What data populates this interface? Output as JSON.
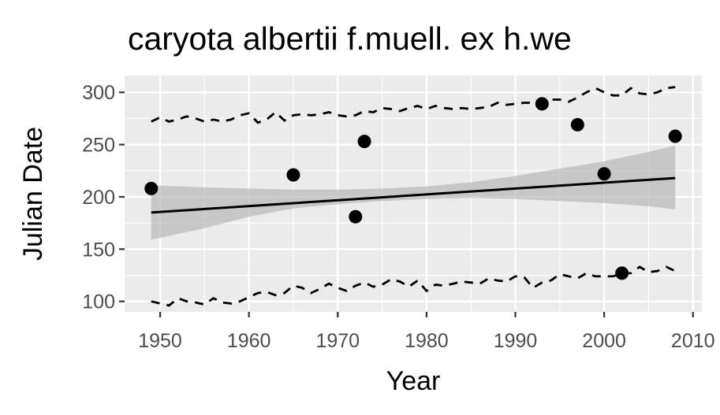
{
  "chart_data": {
    "type": "scatter",
    "title": "caryota albertii f.muell. ex h.we",
    "xlabel": "Year",
    "ylabel": "Julian Date",
    "xlim": [
      1946,
      2011
    ],
    "ylim": [
      90,
      316
    ],
    "xticks": [
      1950,
      1960,
      1970,
      1980,
      1990,
      2000,
      2010
    ],
    "xtick_labels": [
      "1950",
      "1960",
      "1970",
      "1980",
      "1990",
      "2000",
      "2010"
    ],
    "yticks": [
      100,
      150,
      200,
      250,
      300
    ],
    "ytick_labels": [
      "100",
      "150",
      "200",
      "250",
      "300"
    ],
    "grid": true,
    "legend": "none",
    "colors": {
      "panel": "#ebebeb",
      "grid": "#ffffff",
      "points": "#000000",
      "ribbon": "#b3b3b3",
      "trend": "#000000",
      "bounds": "#000000"
    },
    "points": [
      {
        "x": 1949,
        "y": 208
      },
      {
        "x": 1965,
        "y": 221
      },
      {
        "x": 1972,
        "y": 181
      },
      {
        "x": 1973,
        "y": 253
      },
      {
        "x": 1993,
        "y": 289
      },
      {
        "x": 1997,
        "y": 269
      },
      {
        "x": 2000,
        "y": 222
      },
      {
        "x": 2002,
        "y": 127
      },
      {
        "x": 2008,
        "y": 258
      }
    ],
    "trend_line": {
      "x": [
        1949,
        2008
      ],
      "y": [
        185,
        218
      ]
    },
    "confidence_band": {
      "x": [
        1949,
        1955,
        1960,
        1965,
        1970,
        1975,
        1980,
        1985,
        1990,
        1995,
        2000,
        2005,
        2008
      ],
      "lower": [
        159,
        170,
        181,
        189,
        193,
        196,
        198,
        199,
        198,
        196,
        194,
        191,
        188
      ],
      "upper": [
        211,
        209,
        208,
        207,
        207,
        208,
        210,
        214,
        220,
        227,
        234,
        243,
        249
      ]
    },
    "upper_bound": {
      "x": [
        1949,
        1950,
        1951,
        1952,
        1953,
        1954,
        1955,
        1956,
        1957,
        1958,
        1959,
        1960,
        1961,
        1962,
        1963,
        1964,
        1965,
        1966,
        1967,
        1968,
        1969,
        1970,
        1971,
        1972,
        1973,
        1974,
        1975,
        1976,
        1977,
        1978,
        1979,
        1980,
        1981,
        1982,
        1983,
        1984,
        1985,
        1986,
        1987,
        1988,
        1989,
        1990,
        1991,
        1992,
        1993,
        1994,
        1995,
        1996,
        1997,
        1998,
        1999,
        2000,
        2001,
        2002,
        2003,
        2004,
        2005,
        2006,
        2007,
        2008
      ],
      "y": [
        272,
        276,
        272,
        274,
        277,
        275,
        272,
        274,
        272,
        274,
        278,
        280,
        271,
        274,
        281,
        273,
        278,
        279,
        278,
        279,
        281,
        278,
        277,
        278,
        282,
        281,
        285,
        284,
        282,
        285,
        287,
        284,
        287,
        285,
        284,
        285,
        284,
        285,
        286,
        290,
        288,
        289,
        290,
        290,
        291,
        293,
        293,
        291,
        295,
        300,
        304,
        300,
        297,
        297,
        304,
        299,
        298,
        300,
        304,
        305
      ]
    },
    "lower_bound": {
      "x": [
        1949,
        1950,
        1951,
        1952,
        1953,
        1954,
        1955,
        1956,
        1957,
        1958,
        1959,
        1960,
        1961,
        1962,
        1963,
        1964,
        1965,
        1966,
        1967,
        1968,
        1969,
        1970,
        1971,
        1972,
        1973,
        1974,
        1975,
        1976,
        1977,
        1978,
        1979,
        1980,
        1981,
        1982,
        1983,
        1984,
        1985,
        1986,
        1987,
        1988,
        1989,
        1990,
        1991,
        1992,
        1993,
        1994,
        1995,
        1996,
        1997,
        1998,
        1999,
        2000,
        2001,
        2002,
        2003,
        2004,
        2005,
        2006,
        2007,
        2008
      ],
      "y": [
        100,
        98,
        96,
        103,
        100,
        99,
        97,
        103,
        99,
        98,
        100,
        104,
        108,
        109,
        106,
        108,
        115,
        113,
        108,
        112,
        117,
        113,
        110,
        115,
        118,
        114,
        116,
        121,
        119,
        114,
        120,
        110,
        116,
        115,
        117,
        119,
        118,
        117,
        122,
        120,
        119,
        124,
        123,
        113,
        118,
        120,
        126,
        124,
        122,
        127,
        124,
        124,
        124,
        127,
        127,
        133,
        128,
        129,
        133,
        129
      ]
    }
  }
}
